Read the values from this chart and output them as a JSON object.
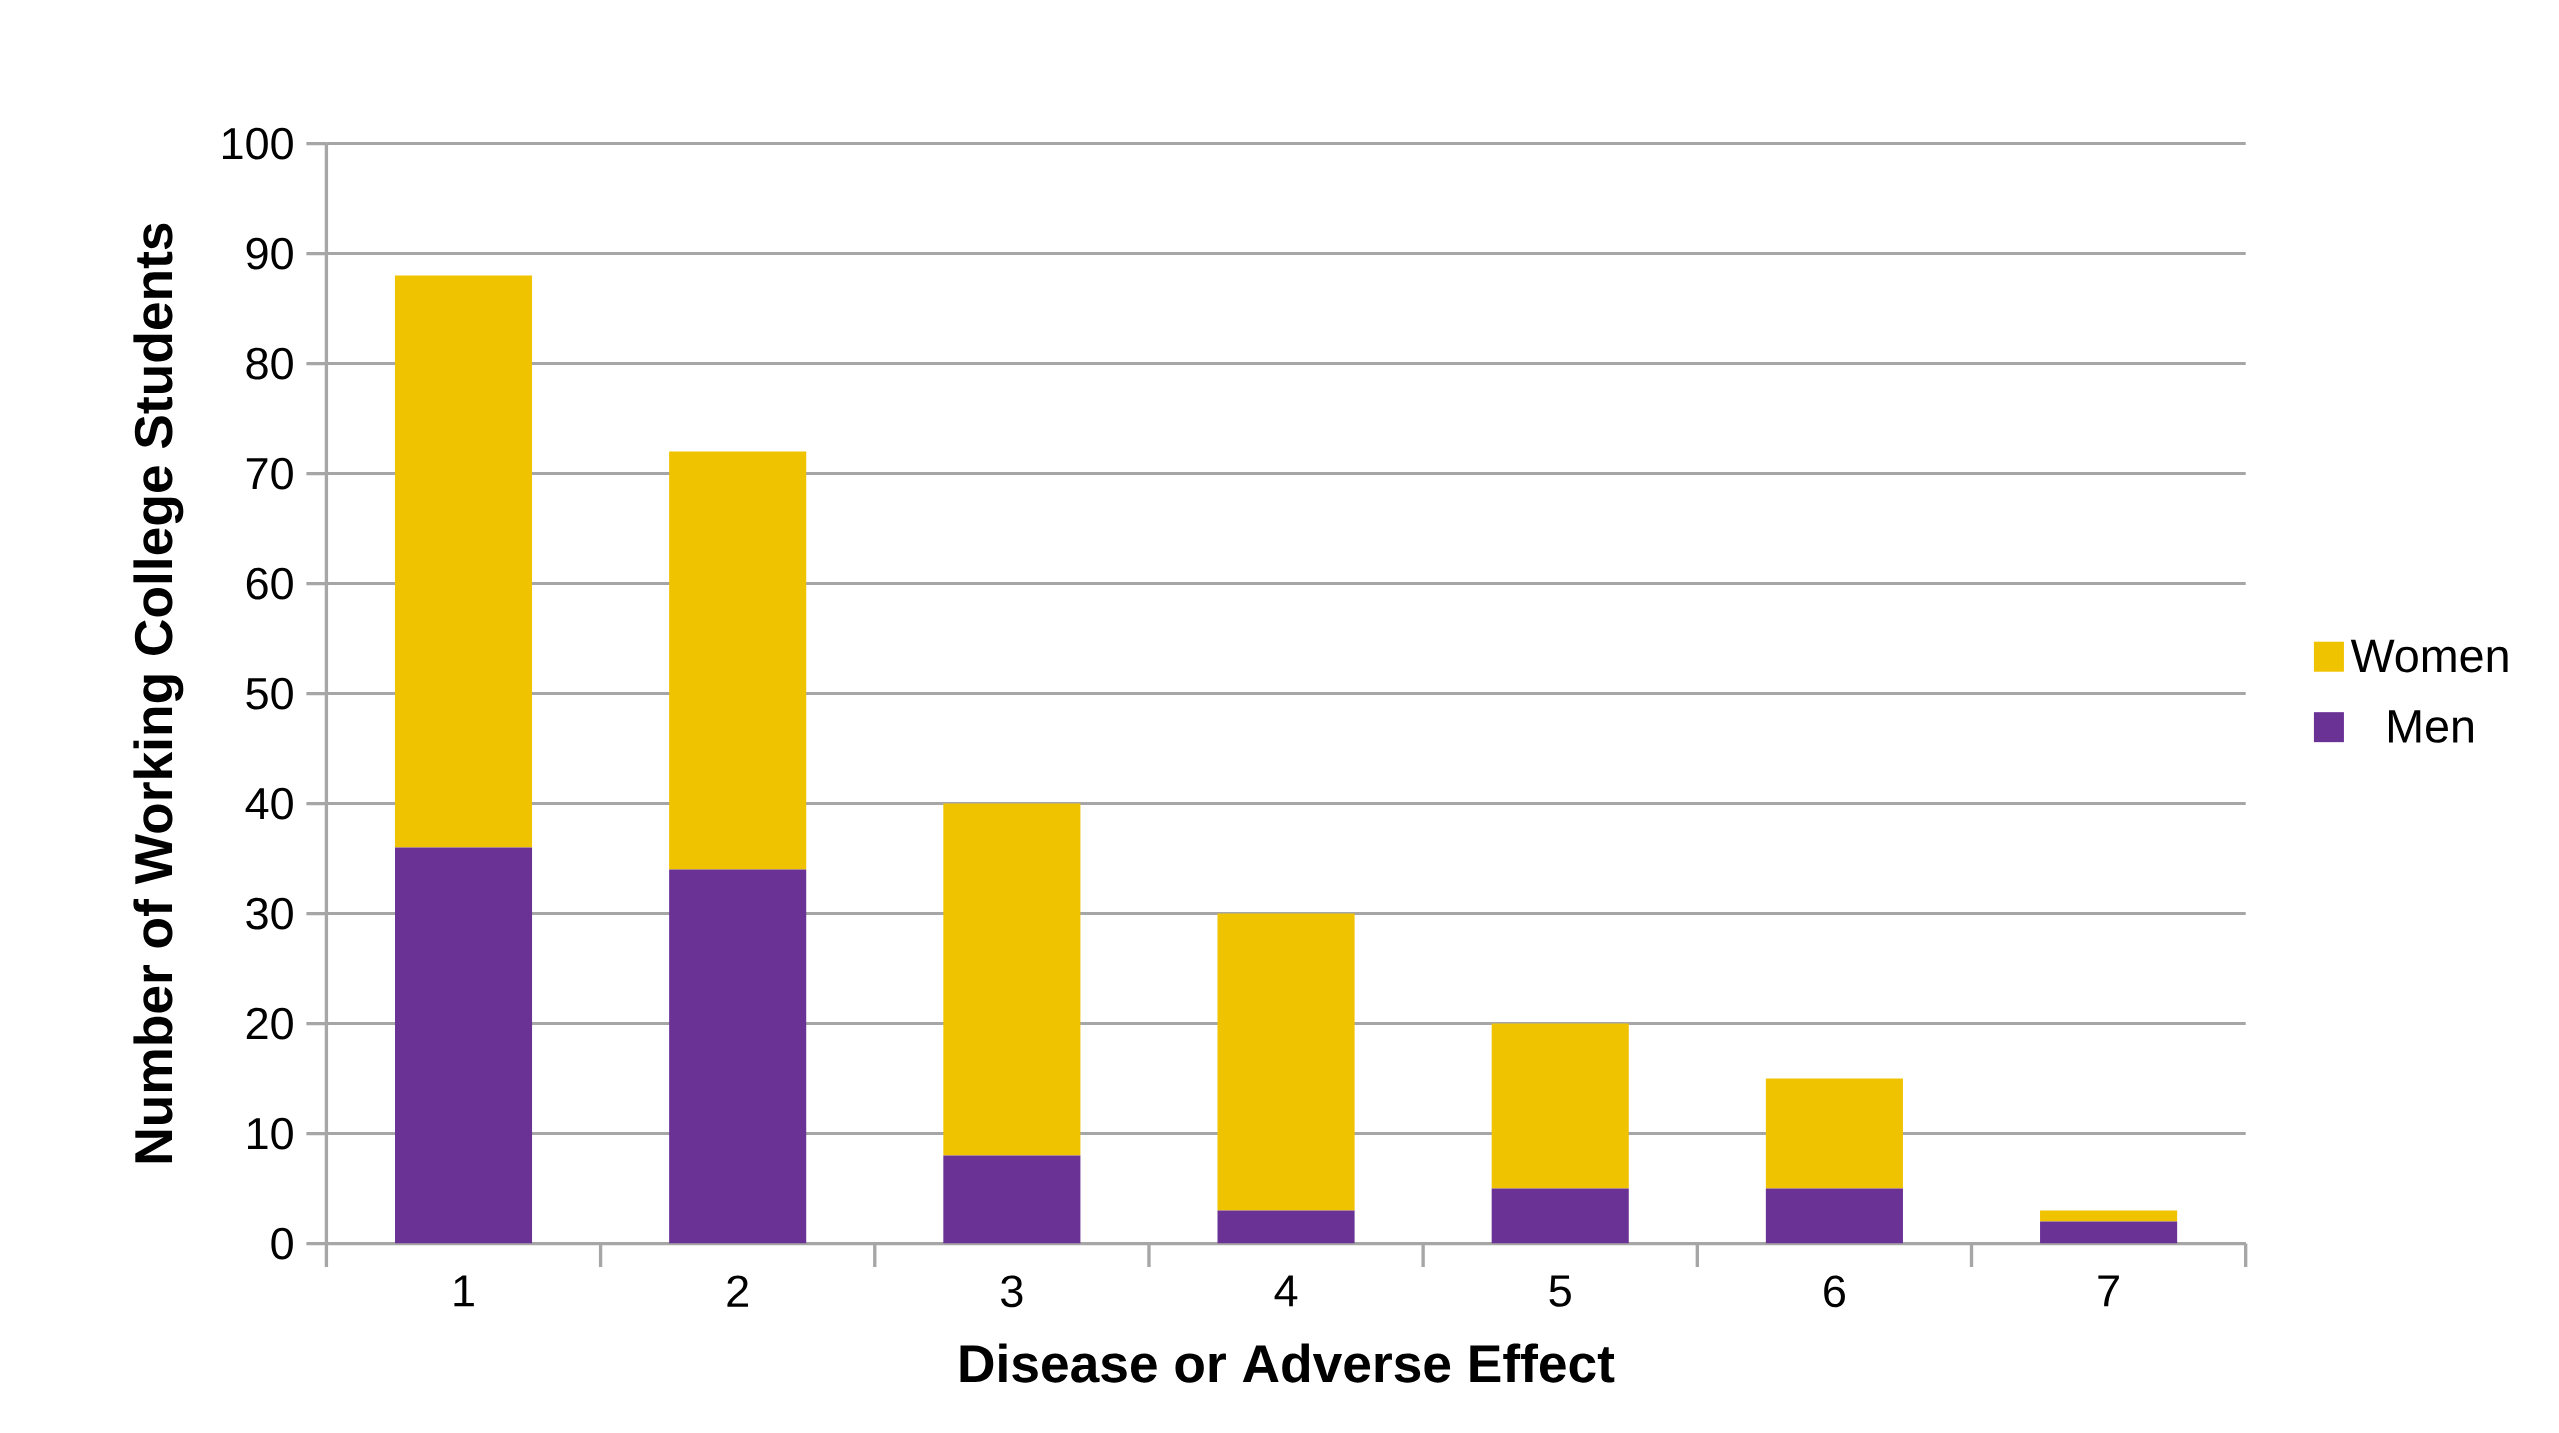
{
  "chart_data": {
    "type": "bar",
    "stacked": true,
    "xlabel": "Disease or Adverse Effect",
    "ylabel": "Number of Working College Students",
    "categories": [
      "1",
      "2",
      "3",
      "4",
      "5",
      "6",
      "7"
    ],
    "series": [
      {
        "name": "Men",
        "color": "#6b3296",
        "values": [
          36,
          34,
          8,
          3,
          5,
          5,
          2
        ]
      },
      {
        "name": "Women",
        "color": "#f0c300",
        "values": [
          52,
          38,
          32,
          27,
          15,
          10,
          1
        ]
      }
    ],
    "ylim": [
      0,
      100
    ],
    "yticks": [
      0,
      10,
      20,
      30,
      40,
      50,
      60,
      70,
      80,
      90,
      100
    ],
    "grid": "y",
    "legend": "right"
  }
}
